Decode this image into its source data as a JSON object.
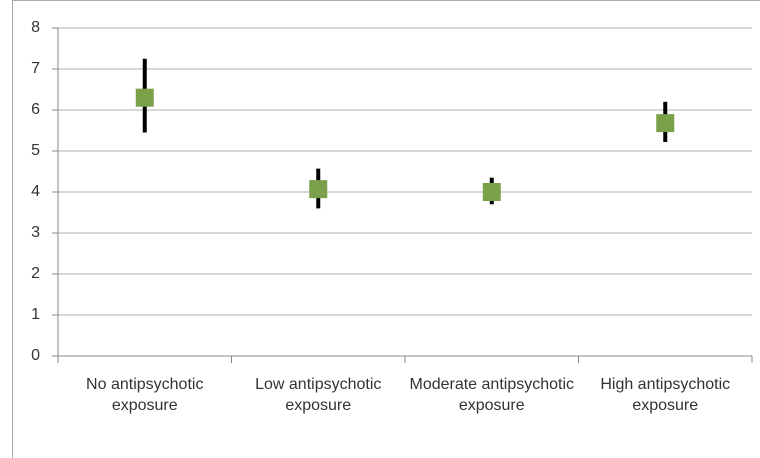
{
  "chart_data": {
    "type": "errorbar",
    "categories": [
      "No antipsychotic exposure",
      "Low antipsychotic exposure",
      "Moderate antipsychotic exposure",
      "High antipsychotic exposure"
    ],
    "values": [
      6.3,
      4.07,
      4.0,
      5.68
    ],
    "lower": [
      5.45,
      3.6,
      3.7,
      5.22
    ],
    "upper": [
      7.25,
      4.57,
      4.35,
      6.2
    ],
    "color": "#7aa04a",
    "ylim": [
      0,
      8
    ],
    "yticks": [
      0,
      1,
      2,
      3,
      4,
      5,
      6,
      7,
      8
    ],
    "grid": true
  }
}
